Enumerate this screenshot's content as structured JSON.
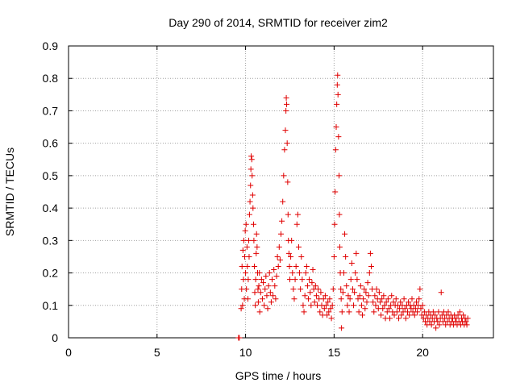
{
  "chart_data": {
    "type": "scatter",
    "title": "Day 290 of 2014, SRMTID for receiver zim2",
    "xlabel": "GPS time / hours",
    "ylabel": "SRMTID / TECUs",
    "xlim": [
      0,
      24
    ],
    "ylim": [
      0,
      0.9
    ],
    "x_ticks": [
      0,
      5,
      10,
      15,
      20
    ],
    "x_tick_labels": [
      "0",
      "5",
      "10",
      "15",
      "20"
    ],
    "y_ticks": [
      0,
      0.1,
      0.2,
      0.3,
      0.4,
      0.5,
      0.6,
      0.7,
      0.8,
      0.9
    ],
    "y_tick_labels": [
      "0",
      "0.1",
      "0.2",
      "0.3",
      "0.4",
      "0.5",
      "0.6",
      "0.7",
      "0.8",
      "0.9"
    ],
    "grid": true,
    "marker": "plus",
    "color": "#e00000",
    "series": [
      {
        "name": "SRMTID",
        "points": [
          [
            9.6,
            0.0
          ],
          [
            9.65,
            0.0
          ],
          [
            9.75,
            0.09
          ],
          [
            9.78,
            0.15
          ],
          [
            9.8,
            0.22
          ],
          [
            9.83,
            0.1
          ],
          [
            9.85,
            0.27
          ],
          [
            9.88,
            0.18
          ],
          [
            9.9,
            0.3
          ],
          [
            9.93,
            0.12
          ],
          [
            9.95,
            0.25
          ],
          [
            9.98,
            0.33
          ],
          [
            10.0,
            0.2
          ],
          [
            10.03,
            0.35
          ],
          [
            10.05,
            0.15
          ],
          [
            10.08,
            0.28
          ],
          [
            10.1,
            0.22
          ],
          [
            10.13,
            0.12
          ],
          [
            10.15,
            0.18
          ],
          [
            10.18,
            0.3
          ],
          [
            10.2,
            0.25
          ],
          [
            10.22,
            0.38
          ],
          [
            10.25,
            0.42
          ],
          [
            10.28,
            0.47
          ],
          [
            10.3,
            0.52
          ],
          [
            10.32,
            0.56
          ],
          [
            10.35,
            0.55
          ],
          [
            10.37,
            0.5
          ],
          [
            10.4,
            0.44
          ],
          [
            10.42,
            0.4
          ],
          [
            10.45,
            0.35
          ],
          [
            10.47,
            0.3
          ],
          [
            10.5,
            0.22
          ],
          [
            10.52,
            0.14
          ],
          [
            10.55,
            0.1
          ],
          [
            10.57,
            0.18
          ],
          [
            10.6,
            0.26
          ],
          [
            10.62,
            0.32
          ],
          [
            10.65,
            0.28
          ],
          [
            10.68,
            0.2
          ],
          [
            10.7,
            0.15
          ],
          [
            10.72,
            0.11
          ],
          [
            10.75,
            0.16
          ],
          [
            10.78,
            0.2
          ],
          [
            10.8,
            0.08
          ],
          [
            10.85,
            0.14
          ],
          [
            10.9,
            0.18
          ],
          [
            10.95,
            0.12
          ],
          [
            11.0,
            0.17
          ],
          [
            11.05,
            0.1
          ],
          [
            11.1,
            0.15
          ],
          [
            11.15,
            0.19
          ],
          [
            11.2,
            0.13
          ],
          [
            11.25,
            0.09
          ],
          [
            11.3,
            0.16
          ],
          [
            11.35,
            0.2
          ],
          [
            11.4,
            0.14
          ],
          [
            11.45,
            0.11
          ],
          [
            11.5,
            0.18
          ],
          [
            11.55,
            0.13
          ],
          [
            11.6,
            0.21
          ],
          [
            11.65,
            0.16
          ],
          [
            11.7,
            0.12
          ],
          [
            11.75,
            0.19
          ],
          [
            11.8,
            0.25
          ],
          [
            11.85,
            0.22
          ],
          [
            11.9,
            0.28
          ],
          [
            11.95,
            0.24
          ],
          [
            12.0,
            0.32
          ],
          [
            12.05,
            0.36
          ],
          [
            12.1,
            0.42
          ],
          [
            12.15,
            0.5
          ],
          [
            12.2,
            0.58
          ],
          [
            12.25,
            0.64
          ],
          [
            12.28,
            0.7
          ],
          [
            12.3,
            0.74
          ],
          [
            12.32,
            0.72
          ],
          [
            12.35,
            0.6
          ],
          [
            12.38,
            0.48
          ],
          [
            12.4,
            0.38
          ],
          [
            12.42,
            0.3
          ],
          [
            12.45,
            0.26
          ],
          [
            12.48,
            0.22
          ],
          [
            12.5,
            0.18
          ],
          [
            12.55,
            0.25
          ],
          [
            12.6,
            0.3
          ],
          [
            12.65,
            0.2
          ],
          [
            12.7,
            0.15
          ],
          [
            12.75,
            0.12
          ],
          [
            12.8,
            0.18
          ],
          [
            12.85,
            0.22
          ],
          [
            12.9,
            0.35
          ],
          [
            12.95,
            0.38
          ],
          [
            13.0,
            0.28
          ],
          [
            13.05,
            0.2
          ],
          [
            13.1,
            0.15
          ],
          [
            13.15,
            0.25
          ],
          [
            13.2,
            0.18
          ],
          [
            13.25,
            0.1
          ],
          [
            13.3,
            0.08
          ],
          [
            13.35,
            0.13
          ],
          [
            13.4,
            0.2
          ],
          [
            13.45,
            0.22
          ],
          [
            13.5,
            0.16
          ],
          [
            13.55,
            0.12
          ],
          [
            13.6,
            0.18
          ],
          [
            13.65,
            0.14
          ],
          [
            13.7,
            0.1
          ],
          [
            13.75,
            0.17
          ],
          [
            13.8,
            0.21
          ],
          [
            13.85,
            0.15
          ],
          [
            13.9,
            0.11
          ],
          [
            13.95,
            0.16
          ],
          [
            14.0,
            0.13
          ],
          [
            14.05,
            0.1
          ],
          [
            14.1,
            0.15
          ],
          [
            14.15,
            0.12
          ],
          [
            14.2,
            0.08
          ],
          [
            14.25,
            0.14
          ],
          [
            14.3,
            0.1
          ],
          [
            14.35,
            0.07
          ],
          [
            14.4,
            0.12
          ],
          [
            14.45,
            0.09
          ],
          [
            14.5,
            0.13
          ],
          [
            14.55,
            0.1
          ],
          [
            14.6,
            0.07
          ],
          [
            14.65,
            0.11
          ],
          [
            14.7,
            0.08
          ],
          [
            14.75,
            0.12
          ],
          [
            14.8,
            0.09
          ],
          [
            14.85,
            0.06
          ],
          [
            14.9,
            0.1
          ],
          [
            14.95,
            0.15
          ],
          [
            15.0,
            0.25
          ],
          [
            15.03,
            0.35
          ],
          [
            15.06,
            0.45
          ],
          [
            15.09,
            0.58
          ],
          [
            15.12,
            0.65
          ],
          [
            15.15,
            0.72
          ],
          [
            15.18,
            0.78
          ],
          [
            15.2,
            0.81
          ],
          [
            15.22,
            0.75
          ],
          [
            15.25,
            0.62
          ],
          [
            15.28,
            0.5
          ],
          [
            15.3,
            0.38
          ],
          [
            15.32,
            0.28
          ],
          [
            15.35,
            0.2
          ],
          [
            15.38,
            0.15
          ],
          [
            15.4,
            0.12
          ],
          [
            15.42,
            0.03
          ],
          [
            15.45,
            0.08
          ],
          [
            15.5,
            0.14
          ],
          [
            15.55,
            0.2
          ],
          [
            15.6,
            0.32
          ],
          [
            15.65,
            0.25
          ],
          [
            15.7,
            0.16
          ],
          [
            15.75,
            0.1
          ],
          [
            15.8,
            0.13
          ],
          [
            15.85,
            0.08
          ],
          [
            15.9,
            0.12
          ],
          [
            15.95,
            0.18
          ],
          [
            16.0,
            0.23
          ],
          [
            16.05,
            0.15
          ],
          [
            16.1,
            0.1
          ],
          [
            16.15,
            0.14
          ],
          [
            16.2,
            0.2
          ],
          [
            16.25,
            0.26
          ],
          [
            16.3,
            0.18
          ],
          [
            16.35,
            0.12
          ],
          [
            16.4,
            0.08
          ],
          [
            16.45,
            0.13
          ],
          [
            16.5,
            0.16
          ],
          [
            16.55,
            0.1
          ],
          [
            16.6,
            0.07
          ],
          [
            16.65,
            0.12
          ],
          [
            16.7,
            0.15
          ],
          [
            16.75,
            0.09
          ],
          [
            16.8,
            0.14
          ],
          [
            16.85,
            0.11
          ],
          [
            16.9,
            0.17
          ],
          [
            16.95,
            0.13
          ],
          [
            17.0,
            0.2
          ],
          [
            17.05,
            0.26
          ],
          [
            17.1,
            0.22
          ],
          [
            17.15,
            0.15
          ],
          [
            17.2,
            0.11
          ],
          [
            17.25,
            0.08
          ],
          [
            17.3,
            0.13
          ],
          [
            17.35,
            0.1
          ],
          [
            17.4,
            0.15
          ],
          [
            17.45,
            0.12
          ],
          [
            17.5,
            0.09
          ],
          [
            17.55,
            0.14
          ],
          [
            17.6,
            0.11
          ],
          [
            17.65,
            0.07
          ],
          [
            17.7,
            0.12
          ],
          [
            17.75,
            0.09
          ],
          [
            17.8,
            0.13
          ],
          [
            17.85,
            0.1
          ],
          [
            17.9,
            0.06
          ],
          [
            17.95,
            0.11
          ],
          [
            18.0,
            0.08
          ],
          [
            18.05,
            0.12
          ],
          [
            18.1,
            0.09
          ],
          [
            18.15,
            0.06
          ],
          [
            18.2,
            0.1
          ],
          [
            18.25,
            0.13
          ],
          [
            18.3,
            0.08
          ],
          [
            18.35,
            0.11
          ],
          [
            18.4,
            0.07
          ],
          [
            18.45,
            0.1
          ],
          [
            18.5,
            0.12
          ],
          [
            18.55,
            0.08
          ],
          [
            18.6,
            0.1
          ],
          [
            18.65,
            0.06
          ],
          [
            18.7,
            0.09
          ],
          [
            18.75,
            0.11
          ],
          [
            18.8,
            0.07
          ],
          [
            18.85,
            0.1
          ],
          [
            18.9,
            0.08
          ],
          [
            18.95,
            0.12
          ],
          [
            19.0,
            0.09
          ],
          [
            19.05,
            0.06
          ],
          [
            19.1,
            0.1
          ],
          [
            19.15,
            0.08
          ],
          [
            19.2,
            0.11
          ],
          [
            19.25,
            0.07
          ],
          [
            19.3,
            0.1
          ],
          [
            19.35,
            0.09
          ],
          [
            19.4,
            0.12
          ],
          [
            19.45,
            0.08
          ],
          [
            19.5,
            0.1
          ],
          [
            19.55,
            0.07
          ],
          [
            19.6,
            0.09
          ],
          [
            19.65,
            0.11
          ],
          [
            19.7,
            0.08
          ],
          [
            19.75,
            0.1
          ],
          [
            19.8,
            0.12
          ],
          [
            19.85,
            0.15
          ],
          [
            19.9,
            0.09
          ],
          [
            19.95,
            0.07
          ],
          [
            20.0,
            0.1
          ],
          [
            20.05,
            0.06
          ],
          [
            20.1,
            0.08
          ],
          [
            20.15,
            0.05
          ],
          [
            20.2,
            0.07
          ],
          [
            20.25,
            0.04
          ],
          [
            20.3,
            0.06
          ],
          [
            20.35,
            0.08
          ],
          [
            20.4,
            0.05
          ],
          [
            20.45,
            0.07
          ],
          [
            20.5,
            0.04
          ],
          [
            20.55,
            0.06
          ],
          [
            20.6,
            0.08
          ],
          [
            20.65,
            0.05
          ],
          [
            20.7,
            0.07
          ],
          [
            20.75,
            0.03
          ],
          [
            20.8,
            0.06
          ],
          [
            20.85,
            0.05
          ],
          [
            20.9,
            0.08
          ],
          [
            20.95,
            0.04
          ],
          [
            21.0,
            0.06
          ],
          [
            21.05,
            0.14
          ],
          [
            21.1,
            0.07
          ],
          [
            21.15,
            0.05
          ],
          [
            21.2,
            0.08
          ],
          [
            21.25,
            0.06
          ],
          [
            21.3,
            0.04
          ],
          [
            21.35,
            0.07
          ],
          [
            21.4,
            0.05
          ],
          [
            21.45,
            0.08
          ],
          [
            21.5,
            0.06
          ],
          [
            21.55,
            0.04
          ],
          [
            21.6,
            0.07
          ],
          [
            21.65,
            0.05
          ],
          [
            21.7,
            0.06
          ],
          [
            21.75,
            0.04
          ],
          [
            21.8,
            0.07
          ],
          [
            21.85,
            0.05
          ],
          [
            21.9,
            0.06
          ],
          [
            21.95,
            0.04
          ],
          [
            22.0,
            0.07
          ],
          [
            22.05,
            0.05
          ],
          [
            22.1,
            0.08
          ],
          [
            22.15,
            0.04
          ],
          [
            22.2,
            0.06
          ],
          [
            22.25,
            0.05
          ],
          [
            22.3,
            0.07
          ],
          [
            22.35,
            0.04
          ],
          [
            22.4,
            0.06
          ],
          [
            22.45,
            0.05
          ],
          [
            22.5,
            0.04
          ],
          [
            22.55,
            0.06
          ]
        ]
      }
    ]
  }
}
